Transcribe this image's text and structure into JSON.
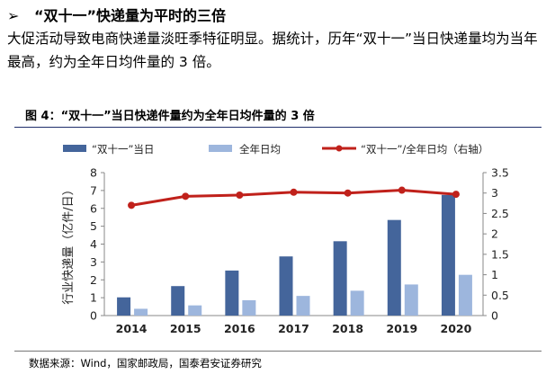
{
  "heading": {
    "marker": "➢",
    "text": "“双十一”快递量为平时的三倍"
  },
  "paragraph": "大促活动导致电商快递量淡旺季特征明显。据统计，历年“双十一”当日快递量均为当年最高，约为全年日均件量的 3 倍。",
  "figure": {
    "label": "图 4：",
    "title": "“双十一”当日快递件量约为全年日均件量的 3 倍"
  },
  "source": "数据来源：Wind，国家邮政局，国泰君安证券研究",
  "colors": {
    "double11": "#44659b",
    "daily": "#9db6dd",
    "ratio": "#c0211b",
    "rule": "#1f2d6b"
  },
  "chart_data": {
    "type": "bar",
    "categories": [
      "2014",
      "2015",
      "2016",
      "2017",
      "2018",
      "2019",
      "2020"
    ],
    "series": [
      {
        "name": "“双十一”当日",
        "type": "bar",
        "axis": "left",
        "values": [
          1.02,
          1.65,
          2.52,
          3.31,
          4.16,
          5.35,
          6.75
        ]
      },
      {
        "name": "全年日均",
        "type": "bar",
        "axis": "left",
        "values": [
          0.38,
          0.57,
          0.86,
          1.1,
          1.39,
          1.74,
          2.28
        ]
      },
      {
        "name": "“双十一”/全年日均（右轴）",
        "type": "line",
        "axis": "right",
        "values": [
          2.7,
          2.92,
          2.95,
          3.02,
          3.0,
          3.07,
          2.97
        ]
      }
    ],
    "ylabel": "行业快递量（亿件/日）",
    "ylim": [
      0,
      8
    ],
    "yticks": [
      "0",
      "1",
      "2",
      "3",
      "4",
      "5",
      "6",
      "7",
      "8"
    ],
    "y2lim": [
      0,
      3.5
    ],
    "y2ticks": [
      "0",
      "0.5",
      "1",
      "1.5",
      "2",
      "2.5",
      "3",
      "3.5"
    ],
    "legend": "top",
    "grid": false
  }
}
